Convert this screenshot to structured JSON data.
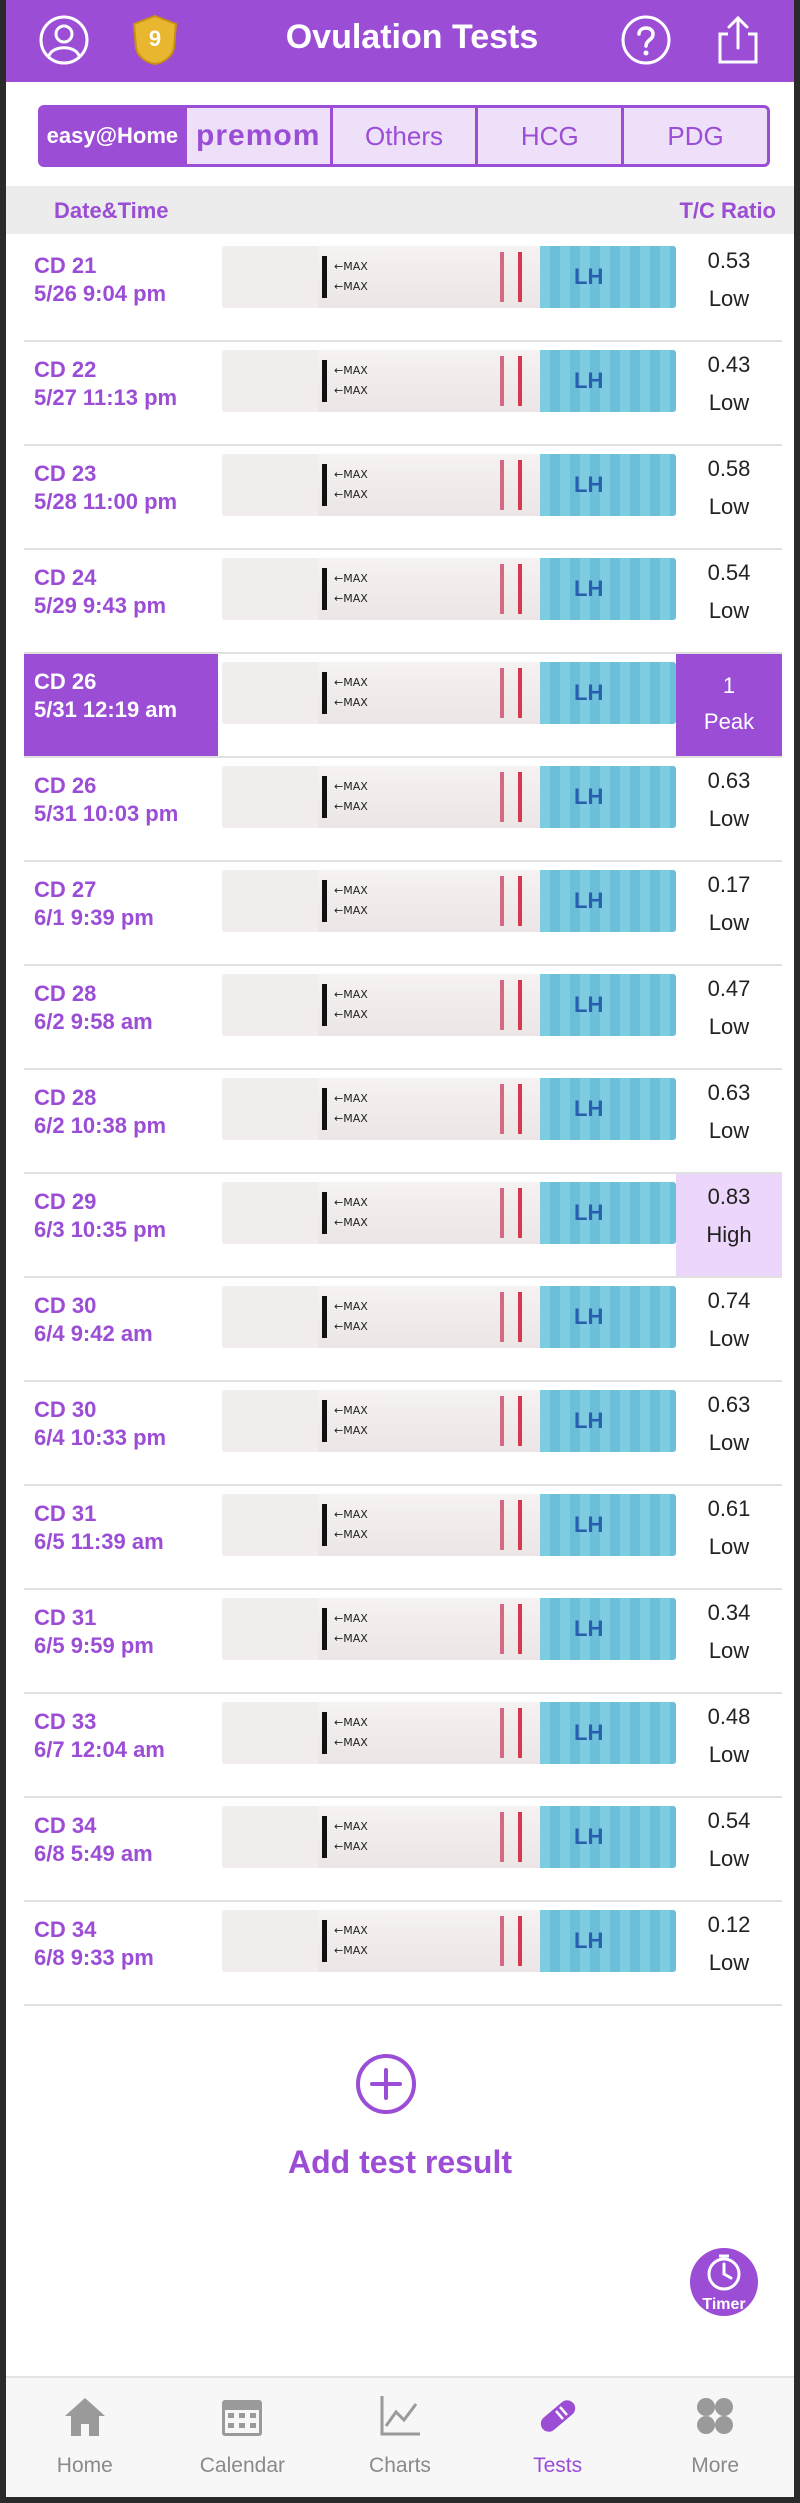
{
  "header": {
    "title": "Ovulation Tests",
    "badge_count": "9",
    "accent_color": "#9b4dd6",
    "icons": [
      "profile-icon",
      "help-icon",
      "share-icon"
    ]
  },
  "brand_tabs": [
    {
      "label": "easy@Home",
      "selected": true
    },
    {
      "label": "premom",
      "selected": false
    },
    {
      "label": "Others",
      "selected": false
    },
    {
      "label": "HCG",
      "selected": false
    },
    {
      "label": "PDG",
      "selected": false
    }
  ],
  "columns": {
    "left": "Date&Time",
    "right": "T/C Ratio"
  },
  "strip_labels": {
    "max": "←MAX",
    "lh": "LH"
  },
  "tests": [
    {
      "cd": "CD 21",
      "time": "5/26 9:04 pm",
      "ratio": "0.53",
      "level": "Low"
    },
    {
      "cd": "CD 22",
      "time": "5/27 11:13 pm",
      "ratio": "0.43",
      "level": "Low"
    },
    {
      "cd": "CD 23",
      "time": "5/28 11:00 pm",
      "ratio": "0.58",
      "level": "Low"
    },
    {
      "cd": "CD 24",
      "time": "5/29 9:43 pm",
      "ratio": "0.54",
      "level": "Low"
    },
    {
      "cd": "CD 26",
      "time": "5/31 12:19 am",
      "ratio": "1",
      "level": "Peak"
    },
    {
      "cd": "CD 26",
      "time": "5/31 10:03 pm",
      "ratio": "0.63",
      "level": "Low"
    },
    {
      "cd": "CD 27",
      "time": "6/1 9:39 pm",
      "ratio": "0.17",
      "level": "Low"
    },
    {
      "cd": "CD 28",
      "time": "6/2 9:58 am",
      "ratio": "0.47",
      "level": "Low"
    },
    {
      "cd": "CD 28",
      "time": "6/2 10:38 pm",
      "ratio": "0.63",
      "level": "Low"
    },
    {
      "cd": "CD 29",
      "time": "6/3 10:35 pm",
      "ratio": "0.83",
      "level": "High"
    },
    {
      "cd": "CD 30",
      "time": "6/4 9:42 am",
      "ratio": "0.74",
      "level": "Low"
    },
    {
      "cd": "CD 30",
      "time": "6/4 10:33 pm",
      "ratio": "0.63",
      "level": "Low"
    },
    {
      "cd": "CD 31",
      "time": "6/5 11:39 am",
      "ratio": "0.61",
      "level": "Low"
    },
    {
      "cd": "CD 31",
      "time": "6/5 9:59 pm",
      "ratio": "0.34",
      "level": "Low"
    },
    {
      "cd": "CD 33",
      "time": "6/7 12:04 am",
      "ratio": "0.48",
      "level": "Low"
    },
    {
      "cd": "CD 34",
      "time": "6/8 5:49 am",
      "ratio": "0.54",
      "level": "Low"
    },
    {
      "cd": "CD 34",
      "time": "6/8 9:33 pm",
      "ratio": "0.12",
      "level": "Low"
    }
  ],
  "add": {
    "label": "Add test result"
  },
  "timer": {
    "label": "Timer"
  },
  "nav": [
    {
      "label": "Home",
      "icon": "home-icon",
      "active": false
    },
    {
      "label": "Calendar",
      "icon": "calendar-icon",
      "active": false
    },
    {
      "label": "Charts",
      "icon": "chart-icon",
      "active": false
    },
    {
      "label": "Tests",
      "icon": "test-strip-icon",
      "active": true
    },
    {
      "label": "More",
      "icon": "more-icon",
      "active": false
    }
  ]
}
